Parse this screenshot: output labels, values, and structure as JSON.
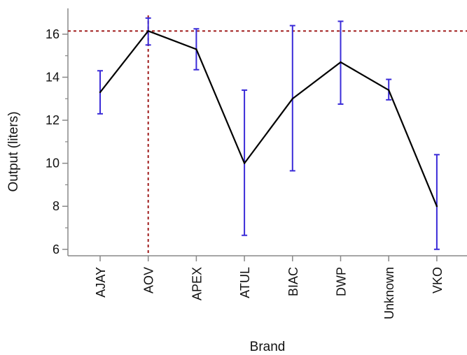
{
  "chart_data": {
    "type": "line",
    "title": "",
    "xlabel": "Brand",
    "ylabel": "Output (liters)",
    "categories": [
      "AJAY",
      "AOV",
      "APEX",
      "ATUL",
      "BIAC",
      "DWP",
      "Unknown",
      "VKO"
    ],
    "series": [
      {
        "values": [
          13.3,
          16.15,
          15.3,
          10.0,
          13.0,
          14.7,
          13.4,
          8.0
        ],
        "error_low": [
          12.3,
          15.5,
          14.35,
          6.65,
          9.65,
          12.75,
          12.95,
          6.0
        ],
        "error_high": [
          14.3,
          16.75,
          16.25,
          13.4,
          16.4,
          16.6,
          13.9,
          10.4
        ]
      }
    ],
    "reference_lines": [
      {
        "orientation": "horizontal",
        "value": 16.15
      },
      {
        "orientation": "vertical",
        "category": "AOV"
      }
    ],
    "ylim": [
      5.7,
      17.2
    ],
    "yticks": [
      6,
      8,
      10,
      12,
      14,
      16
    ],
    "grid": false,
    "colors": {
      "line": "#000000",
      "error_bars": "#3a2bd8",
      "reference": "#a01c1c",
      "axis": "#888888"
    }
  }
}
